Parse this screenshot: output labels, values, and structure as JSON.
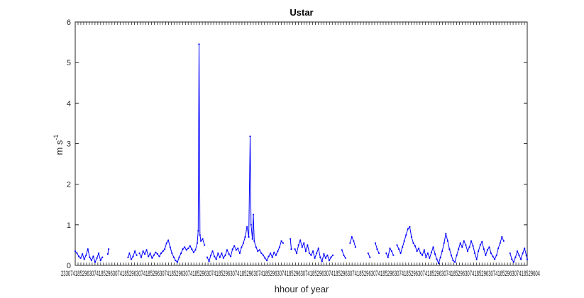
{
  "chart_data": {
    "type": "line",
    "title": "Ustar",
    "xlabel": "hhour of year",
    "ylabel": "m s",
    "ylabel_superscript": "-1",
    "ylim": [
      0,
      6
    ],
    "yticks": [
      0,
      1,
      2,
      3,
      4,
      5,
      6
    ],
    "xlim": [
      0,
      1
    ],
    "xtick_labels_note": "Hundreds of overlapping x tick labels render as an illegible band; first readable fragment '23', last readable fragment '04'.",
    "xtick_first_fragment": "23",
    "xtick_last_fragment": "04",
    "grid": false,
    "box": true,
    "colors": {
      "series": "#0000ff",
      "axes": "#262626",
      "background": "#ffffff"
    },
    "marker": "dot",
    "series": [
      {
        "segments": [
          [
            [
              0.0,
              0.35
            ],
            [
              0.004,
              0.3
            ],
            [
              0.008,
              0.22
            ],
            [
              0.012,
              0.18
            ],
            [
              0.016,
              0.28
            ],
            [
              0.02,
              0.15
            ],
            [
              0.024,
              0.25
            ],
            [
              0.028,
              0.4
            ],
            [
              0.032,
              0.2
            ],
            [
              0.036,
              0.12
            ],
            [
              0.04,
              0.22
            ],
            [
              0.044,
              0.08
            ],
            [
              0.048,
              0.18
            ],
            [
              0.052,
              0.3
            ],
            [
              0.056,
              0.12
            ],
            [
              0.06,
              0.2
            ]
          ],
          [
            [
              0.072,
              0.28
            ],
            [
              0.074,
              0.4
            ]
          ],
          [
            [
              0.117,
              0.2
            ],
            [
              0.12,
              0.3
            ],
            [
              0.124,
              0.15
            ],
            [
              0.128,
              0.22
            ],
            [
              0.132,
              0.35
            ],
            [
              0.136,
              0.25
            ]
          ],
          [
            [
              0.142,
              0.3
            ],
            [
              0.146,
              0.2
            ],
            [
              0.15,
              0.35
            ],
            [
              0.154,
              0.28
            ],
            [
              0.158,
              0.38
            ],
            [
              0.162,
              0.22
            ],
            [
              0.166,
              0.3
            ],
            [
              0.17,
              0.18
            ],
            [
              0.174,
              0.25
            ],
            [
              0.178,
              0.32
            ],
            [
              0.182,
              0.28
            ],
            [
              0.186,
              0.22
            ],
            [
              0.19,
              0.3
            ],
            [
              0.194,
              0.35
            ],
            [
              0.198,
              0.4
            ],
            [
              0.202,
              0.55
            ],
            [
              0.206,
              0.62
            ],
            [
              0.21,
              0.45
            ],
            [
              0.214,
              0.3
            ],
            [
              0.218,
              0.2
            ],
            [
              0.222,
              0.12
            ],
            [
              0.226,
              0.08
            ],
            [
              0.23,
              0.2
            ],
            [
              0.234,
              0.3
            ],
            [
              0.238,
              0.4
            ],
            [
              0.242,
              0.45
            ],
            [
              0.246,
              0.38
            ],
            [
              0.25,
              0.42
            ],
            [
              0.254,
              0.48
            ],
            [
              0.258,
              0.4
            ],
            [
              0.262,
              0.32
            ],
            [
              0.266,
              0.38
            ],
            [
              0.27,
              0.55
            ],
            [
              0.272,
              0.85
            ],
            [
              0.274,
              5.45
            ],
            [
              0.276,
              0.75
            ],
            [
              0.278,
              0.6
            ],
            [
              0.282,
              0.65
            ],
            [
              0.286,
              0.5
            ]
          ],
          [
            [
              0.292,
              0.2
            ],
            [
              0.296,
              0.1
            ],
            [
              0.3,
              0.25
            ],
            [
              0.304,
              0.35
            ],
            [
              0.308,
              0.22
            ],
            [
              0.312,
              0.15
            ],
            [
              0.316,
              0.3
            ],
            [
              0.32,
              0.2
            ],
            [
              0.324,
              0.3
            ],
            [
              0.328,
              0.18
            ],
            [
              0.332,
              0.25
            ],
            [
              0.336,
              0.38
            ],
            [
              0.34,
              0.28
            ],
            [
              0.344,
              0.22
            ],
            [
              0.348,
              0.4
            ],
            [
              0.352,
              0.48
            ],
            [
              0.356,
              0.38
            ],
            [
              0.36,
              0.42
            ],
            [
              0.364,
              0.3
            ],
            [
              0.368,
              0.45
            ],
            [
              0.372,
              0.55
            ],
            [
              0.376,
              0.7
            ],
            [
              0.38,
              0.95
            ],
            [
              0.384,
              0.7
            ],
            [
              0.387,
              3.18
            ],
            [
              0.389,
              1.0
            ],
            [
              0.392,
              0.65
            ],
            [
              0.394,
              1.25
            ],
            [
              0.396,
              0.6
            ],
            [
              0.4,
              0.45
            ],
            [
              0.404,
              0.35
            ],
            [
              0.408,
              0.38
            ],
            [
              0.412,
              0.3
            ],
            [
              0.416,
              0.25
            ],
            [
              0.42,
              0.18
            ],
            [
              0.424,
              0.12
            ],
            [
              0.428,
              0.22
            ],
            [
              0.432,
              0.3
            ],
            [
              0.436,
              0.2
            ],
            [
              0.44,
              0.32
            ],
            [
              0.444,
              0.25
            ],
            [
              0.448,
              0.35
            ],
            [
              0.452,
              0.45
            ],
            [
              0.456,
              0.6
            ],
            [
              0.46,
              0.55
            ]
          ],
          [
            [
              0.476,
              0.65
            ],
            [
              0.478,
              0.4
            ]
          ],
          [
            [
              0.486,
              0.4
            ],
            [
              0.49,
              0.3
            ],
            [
              0.494,
              0.5
            ],
            [
              0.498,
              0.62
            ],
            [
              0.502,
              0.45
            ],
            [
              0.506,
              0.55
            ],
            [
              0.51,
              0.35
            ],
            [
              0.514,
              0.5
            ],
            [
              0.518,
              0.3
            ],
            [
              0.522,
              0.25
            ],
            [
              0.526,
              0.35
            ],
            [
              0.53,
              0.18
            ],
            [
              0.534,
              0.3
            ],
            [
              0.538,
              0.42
            ],
            [
              0.542,
              0.2
            ],
            [
              0.546,
              0.1
            ],
            [
              0.55,
              0.28
            ],
            [
              0.554,
              0.18
            ],
            [
              0.558,
              0.25
            ],
            [
              0.562,
              0.12
            ],
            [
              0.566,
              0.2
            ],
            [
              0.57,
              0.25
            ]
          ],
          [
            [
              0.59,
              0.38
            ],
            [
              0.594,
              0.25
            ],
            [
              0.598,
              0.18
            ]
          ],
          [
            [
              0.608,
              0.55
            ],
            [
              0.612,
              0.7
            ],
            [
              0.616,
              0.6
            ],
            [
              0.62,
              0.45
            ]
          ],
          [
            [
              0.648,
              0.3
            ],
            [
              0.652,
              0.2
            ]
          ],
          [
            [
              0.664,
              0.55
            ],
            [
              0.668,
              0.4
            ],
            [
              0.672,
              0.3
            ]
          ],
          [
            [
              0.688,
              0.3
            ],
            [
              0.692,
              0.2
            ],
            [
              0.696,
              0.42
            ],
            [
              0.7,
              0.35
            ],
            [
              0.704,
              0.25
            ]
          ],
          [
            [
              0.712,
              0.5
            ],
            [
              0.716,
              0.4
            ],
            [
              0.72,
              0.3
            ],
            [
              0.724,
              0.45
            ],
            [
              0.728,
              0.6
            ],
            [
              0.732,
              0.75
            ],
            [
              0.736,
              0.9
            ],
            [
              0.74,
              0.95
            ],
            [
              0.744,
              0.7
            ],
            [
              0.748,
              0.55
            ],
            [
              0.752,
              0.48
            ],
            [
              0.756,
              0.35
            ],
            [
              0.76,
              0.42
            ],
            [
              0.764,
              0.3
            ],
            [
              0.768,
              0.25
            ],
            [
              0.772,
              0.38
            ],
            [
              0.776,
              0.2
            ],
            [
              0.78,
              0.3
            ],
            [
              0.784,
              0.18
            ],
            [
              0.788,
              0.32
            ],
            [
              0.792,
              0.45
            ],
            [
              0.796,
              0.28
            ],
            [
              0.8,
              0.15
            ],
            [
              0.804,
              0.05
            ],
            [
              0.808,
              0.2
            ],
            [
              0.812,
              0.35
            ],
            [
              0.816,
              0.55
            ],
            [
              0.82,
              0.78
            ],
            [
              0.824,
              0.6
            ],
            [
              0.828,
              0.4
            ],
            [
              0.832,
              0.25
            ],
            [
              0.836,
              0.12
            ],
            [
              0.84,
              0.08
            ],
            [
              0.844,
              0.25
            ],
            [
              0.848,
              0.4
            ],
            [
              0.852,
              0.55
            ],
            [
              0.856,
              0.45
            ],
            [
              0.86,
              0.6
            ],
            [
              0.864,
              0.5
            ],
            [
              0.868,
              0.35
            ],
            [
              0.872,
              0.45
            ],
            [
              0.876,
              0.6
            ],
            [
              0.88,
              0.48
            ],
            [
              0.884,
              0.3
            ],
            [
              0.888,
              0.15
            ],
            [
              0.892,
              0.35
            ],
            [
              0.896,
              0.5
            ],
            [
              0.9,
              0.58
            ],
            [
              0.904,
              0.4
            ],
            [
              0.908,
              0.25
            ],
            [
              0.912,
              0.38
            ],
            [
              0.916,
              0.45
            ],
            [
              0.92,
              0.3
            ],
            [
              0.924,
              0.22
            ],
            [
              0.928,
              0.15
            ],
            [
              0.932,
              0.25
            ],
            [
              0.936,
              0.42
            ],
            [
              0.94,
              0.55
            ],
            [
              0.944,
              0.7
            ],
            [
              0.948,
              0.6
            ]
          ],
          [
            [
              0.962,
              0.3
            ],
            [
              0.966,
              0.15
            ],
            [
              0.97,
              0.08
            ],
            [
              0.974,
              0.2
            ],
            [
              0.978,
              0.35
            ],
            [
              0.982,
              0.25
            ],
            [
              0.986,
              0.15
            ],
            [
              0.99,
              0.3
            ],
            [
              0.994,
              0.42
            ],
            [
              0.998,
              0.25
            ],
            [
              1.0,
              0.15
            ]
          ]
        ]
      }
    ]
  }
}
